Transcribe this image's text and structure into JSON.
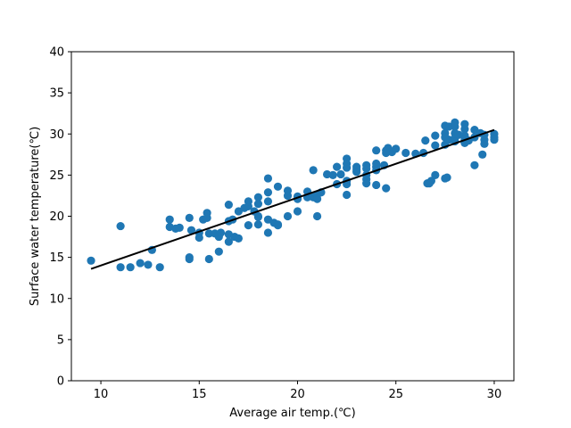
{
  "chart_data": {
    "type": "scatter",
    "title": "",
    "xlabel": "Average air temp.(℃)",
    "ylabel": "Surface water temperature(℃)",
    "xlim": [
      8.5,
      31.0
    ],
    "ylim": [
      0,
      40
    ],
    "x_ticks": [
      10,
      15,
      20,
      25,
      30
    ],
    "y_ticks": [
      0,
      5,
      10,
      15,
      20,
      25,
      30,
      35,
      40
    ],
    "grid": false,
    "legend": "none",
    "point_color": "#1f77b4",
    "line_color": "#000000",
    "series": [
      {
        "type": "scatter",
        "points": [
          [
            9.5,
            14.6
          ],
          [
            11.0,
            13.8
          ],
          [
            11.0,
            18.8
          ],
          [
            11.5,
            13.8
          ],
          [
            12.0,
            14.3
          ],
          [
            12.4,
            14.1
          ],
          [
            12.6,
            15.9
          ],
          [
            13.0,
            13.8
          ],
          [
            13.5,
            19.6
          ],
          [
            13.5,
            18.7
          ],
          [
            13.8,
            18.5
          ],
          [
            14.0,
            18.6
          ],
          [
            14.5,
            19.8
          ],
          [
            14.5,
            14.8
          ],
          [
            14.5,
            15.0
          ],
          [
            14.6,
            18.3
          ],
          [
            15.0,
            17.4
          ],
          [
            15.0,
            18.0
          ],
          [
            15.2,
            19.6
          ],
          [
            15.4,
            20.4
          ],
          [
            15.4,
            19.8
          ],
          [
            15.5,
            17.9
          ],
          [
            15.5,
            14.8
          ],
          [
            15.8,
            17.9
          ],
          [
            16.0,
            17.8
          ],
          [
            16.0,
            17.5
          ],
          [
            16.0,
            15.7
          ],
          [
            16.1,
            18.0
          ],
          [
            16.5,
            21.4
          ],
          [
            16.5,
            19.4
          ],
          [
            16.5,
            17.8
          ],
          [
            16.5,
            16.9
          ],
          [
            16.7,
            19.6
          ],
          [
            16.8,
            17.5
          ],
          [
            17.0,
            20.6
          ],
          [
            17.0,
            17.3
          ],
          [
            17.3,
            21.0
          ],
          [
            17.5,
            21.2
          ],
          [
            17.5,
            21.8
          ],
          [
            17.5,
            18.9
          ],
          [
            17.8,
            20.6
          ],
          [
            18.0,
            22.3
          ],
          [
            18.0,
            21.5
          ],
          [
            18.0,
            20.0
          ],
          [
            18.0,
            19.9
          ],
          [
            18.0,
            19.0
          ],
          [
            18.5,
            24.6
          ],
          [
            18.5,
            22.9
          ],
          [
            18.5,
            21.8
          ],
          [
            18.5,
            19.6
          ],
          [
            18.5,
            18.0
          ],
          [
            18.8,
            19.2
          ],
          [
            19.0,
            23.6
          ],
          [
            19.0,
            18.9
          ],
          [
            19.0,
            19.0
          ],
          [
            19.5,
            23.1
          ],
          [
            19.5,
            22.5
          ],
          [
            19.5,
            20.0
          ],
          [
            20.0,
            22.4
          ],
          [
            20.0,
            22.1
          ],
          [
            20.0,
            20.6
          ],
          [
            20.5,
            23.0
          ],
          [
            20.5,
            22.3
          ],
          [
            20.8,
            25.6
          ],
          [
            20.8,
            22.3
          ],
          [
            21.0,
            22.6
          ],
          [
            21.0,
            22.1
          ],
          [
            21.0,
            20.0
          ],
          [
            21.2,
            22.9
          ],
          [
            21.5,
            25.1
          ],
          [
            21.8,
            25.0
          ],
          [
            22.0,
            26.0
          ],
          [
            22.0,
            23.9
          ],
          [
            22.2,
            25.1
          ],
          [
            22.5,
            27.0
          ],
          [
            22.5,
            26.4
          ],
          [
            22.5,
            25.9
          ],
          [
            22.5,
            24.3
          ],
          [
            22.5,
            23.9
          ],
          [
            22.5,
            22.6
          ],
          [
            23.0,
            26.0
          ],
          [
            23.0,
            25.7
          ],
          [
            23.0,
            25.4
          ],
          [
            23.5,
            26.2
          ],
          [
            23.5,
            25.8
          ],
          [
            23.5,
            25.0
          ],
          [
            23.5,
            24.5
          ],
          [
            23.5,
            24.0
          ],
          [
            24.0,
            28.0
          ],
          [
            24.0,
            26.4
          ],
          [
            24.0,
            26.0
          ],
          [
            24.0,
            25.6
          ],
          [
            24.0,
            23.8
          ],
          [
            24.4,
            26.2
          ],
          [
            24.5,
            28.0
          ],
          [
            24.5,
            27.7
          ],
          [
            24.5,
            23.4
          ],
          [
            24.6,
            28.3
          ],
          [
            24.8,
            27.8
          ],
          [
            25.0,
            28.2
          ],
          [
            25.5,
            27.7
          ],
          [
            26.0,
            27.6
          ],
          [
            26.4,
            27.7
          ],
          [
            26.5,
            29.2
          ],
          [
            26.6,
            24.0
          ],
          [
            26.7,
            24.0
          ],
          [
            26.8,
            24.3
          ],
          [
            27.0,
            29.8
          ],
          [
            27.0,
            28.6
          ],
          [
            27.0,
            25.0
          ],
          [
            27.5,
            31.0
          ],
          [
            27.5,
            30.1
          ],
          [
            27.5,
            29.6
          ],
          [
            27.5,
            28.7
          ],
          [
            27.5,
            24.6
          ],
          [
            27.6,
            24.7
          ],
          [
            27.7,
            30.9
          ],
          [
            27.7,
            29.3
          ],
          [
            28.0,
            31.4
          ],
          [
            28.0,
            30.9
          ],
          [
            28.0,
            30.1
          ],
          [
            28.0,
            29.5
          ],
          [
            28.0,
            29.1
          ],
          [
            28.2,
            29.9
          ],
          [
            28.5,
            31.2
          ],
          [
            28.5,
            30.6
          ],
          [
            28.5,
            29.8
          ],
          [
            28.5,
            29.3
          ],
          [
            28.5,
            28.9
          ],
          [
            28.7,
            29.2
          ],
          [
            29.0,
            30.5
          ],
          [
            29.0,
            29.6
          ],
          [
            29.0,
            26.2
          ],
          [
            29.3,
            30.1
          ],
          [
            29.4,
            27.5
          ],
          [
            29.5,
            29.9
          ],
          [
            29.5,
            29.3
          ],
          [
            29.5,
            28.8
          ],
          [
            30.0,
            30.0
          ],
          [
            30.0,
            29.6
          ],
          [
            30.0,
            29.3
          ]
        ]
      },
      {
        "type": "line",
        "points": [
          [
            9.5,
            13.6
          ],
          [
            30.0,
            30.5
          ]
        ]
      }
    ]
  }
}
